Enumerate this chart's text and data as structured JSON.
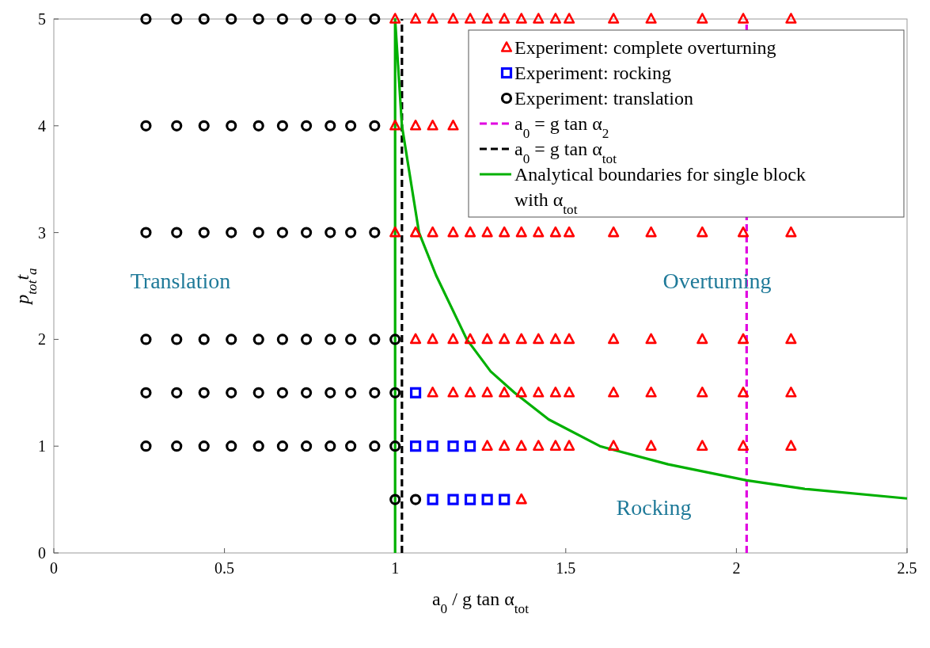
{
  "chart_data": {
    "type": "scatter",
    "xlabel": "a$_{0}$ / g tan α$_{tot}$",
    "ylabel": "p$_{tot}$t$_{a}$",
    "xlim": [
      0,
      2.5
    ],
    "xticks": [
      0,
      0.5,
      1,
      1.5,
      2,
      2.5
    ],
    "ylim": [
      0,
      5
    ],
    "yticks": [
      0,
      1,
      2,
      3,
      4,
      5
    ],
    "grid": false,
    "legend": "top right",
    "series": [
      {
        "name": "Experiment: complete overturning",
        "color": "#ff0000",
        "marker": "triangle",
        "x": [
          1.0,
          1.06,
          1.11,
          1.17,
          1.22,
          1.27,
          1.32,
          1.37,
          1.42,
          1.47,
          1.51,
          1.64,
          1.75,
          1.9,
          2.02,
          2.16,
          1.0,
          1.06,
          1.11,
          1.17,
          1.0,
          1.06,
          1.11,
          1.17,
          1.22,
          1.27,
          1.32,
          1.37,
          1.42,
          1.47,
          1.51,
          1.64,
          1.75,
          1.9,
          2.02,
          2.16,
          1.06,
          1.11,
          1.17,
          1.22,
          1.27,
          1.32,
          1.37,
          1.42,
          1.47,
          1.51,
          1.64,
          1.75,
          1.9,
          2.02,
          2.16,
          1.11,
          1.17,
          1.22,
          1.27,
          1.32,
          1.37,
          1.42,
          1.47,
          1.51,
          1.64,
          1.75,
          1.9,
          2.02,
          2.16,
          1.27,
          1.32,
          1.37,
          1.42,
          1.47,
          1.51,
          1.64,
          1.75,
          1.9,
          2.02,
          2.16,
          1.37
        ],
        "values": [
          5,
          5,
          5,
          5,
          5,
          5,
          5,
          5,
          5,
          5,
          5,
          5,
          5,
          5,
          5,
          5,
          4,
          4,
          4,
          4,
          3,
          3,
          3,
          3,
          3,
          3,
          3,
          3,
          3,
          3,
          3,
          3,
          3,
          3,
          3,
          3,
          2,
          2,
          2,
          2,
          2,
          2,
          2,
          2,
          2,
          2,
          2,
          2,
          2,
          2,
          2,
          1.5,
          1.5,
          1.5,
          1.5,
          1.5,
          1.5,
          1.5,
          1.5,
          1.5,
          1.5,
          1.5,
          1.5,
          1.5,
          1.5,
          1,
          1,
          1,
          1,
          1,
          1,
          1,
          1,
          1,
          1,
          1,
          0.5
        ]
      },
      {
        "name": "Experiment: rocking",
        "color": "#0000ff",
        "marker": "square",
        "x": [
          1.06,
          1.06,
          1.11,
          1.17,
          1.22,
          1.11,
          1.17,
          1.22,
          1.27,
          1.32
        ],
        "values": [
          1.5,
          1,
          1,
          1,
          1,
          0.5,
          0.5,
          0.5,
          0.5,
          0.5
        ]
      },
      {
        "name": "Experiment: translation",
        "color": "#000000",
        "marker": "circle",
        "x": [
          0.27,
          0.36,
          0.44,
          0.52,
          0.6,
          0.67,
          0.74,
          0.81,
          0.87,
          0.94,
          0.27,
          0.36,
          0.44,
          0.52,
          0.6,
          0.67,
          0.74,
          0.81,
          0.87,
          0.94,
          0.27,
          0.36,
          0.44,
          0.52,
          0.6,
          0.67,
          0.74,
          0.81,
          0.87,
          0.94,
          0.27,
          0.36,
          0.44,
          0.52,
          0.6,
          0.67,
          0.74,
          0.81,
          0.87,
          0.94,
          1.0,
          0.27,
          0.36,
          0.44,
          0.52,
          0.6,
          0.67,
          0.74,
          0.81,
          0.87,
          0.94,
          1.0,
          0.27,
          0.36,
          0.44,
          0.52,
          0.6,
          0.67,
          0.74,
          0.81,
          0.87,
          0.94,
          1.0,
          1.0,
          1.06
        ],
        "values": [
          5,
          5,
          5,
          5,
          5,
          5,
          5,
          5,
          5,
          5,
          4,
          4,
          4,
          4,
          4,
          4,
          4,
          4,
          4,
          4,
          3,
          3,
          3,
          3,
          3,
          3,
          3,
          3,
          3,
          3,
          2,
          2,
          2,
          2,
          2,
          2,
          2,
          2,
          2,
          2,
          2,
          1.5,
          1.5,
          1.5,
          1.5,
          1.5,
          1.5,
          1.5,
          1.5,
          1.5,
          1.5,
          1.5,
          1,
          1,
          1,
          1,
          1,
          1,
          1,
          1,
          1,
          1,
          1,
          0.5,
          0.5
        ]
      },
      {
        "name": "a$_{0}$ = g tan α$_{2}$",
        "type": "line",
        "color": "#e000e0",
        "line_style": "dashed",
        "x": [
          2.03,
          2.03
        ],
        "values": [
          0,
          5
        ]
      },
      {
        "name": "a$_{0}$ = g tan α$_{tot}$",
        "type": "line",
        "color": "#000000",
        "line_style": "dashed",
        "x": [
          1.02,
          1.02
        ],
        "values": [
          0,
          5
        ]
      },
      {
        "name": "Analytical boundaries for single block with α$_{tot}$",
        "type": "line",
        "color": "#00b000",
        "line_style": "solid",
        "x": [
          1,
          1,
          1.02,
          1.07,
          1.12,
          1.21,
          1.28,
          1.35,
          1.45,
          1.6,
          1.8,
          2.03,
          2.2,
          2.5
        ],
        "values": [
          0,
          5,
          4,
          3,
          2.6,
          2,
          1.7,
          1.5,
          1.25,
          1,
          0.83,
          0.68,
          0.6,
          0.51
        ]
      }
    ],
    "annotations": [
      "Translation",
      "Overturning",
      "Rocking"
    ]
  }
}
